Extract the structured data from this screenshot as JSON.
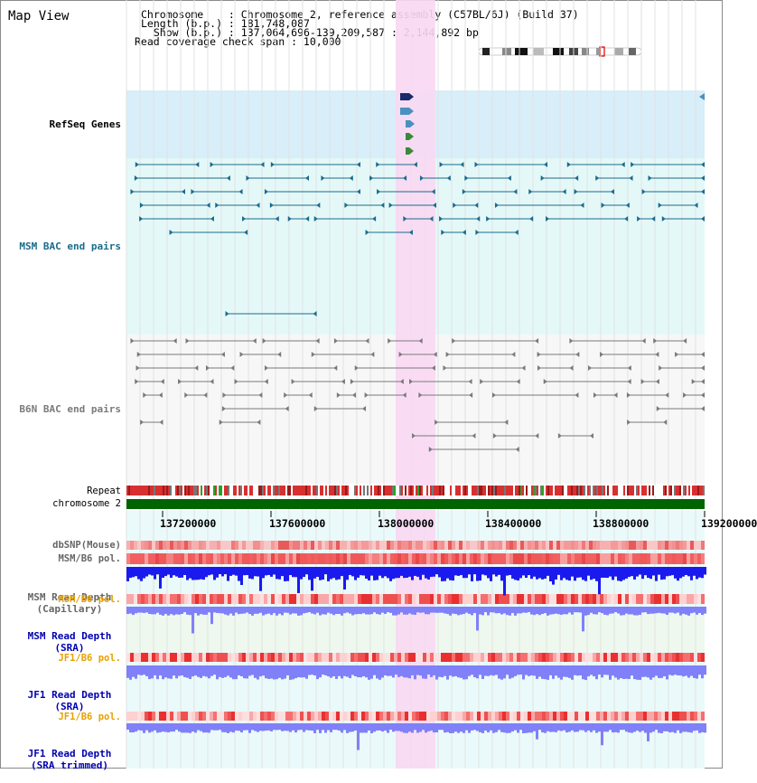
{
  "header": {
    "title": "Map View",
    "chromosome_line": "Chromosome    : Chromosome 2, reference assembly (C57BL/6J) (Build 37)",
    "length_line": "Length (b.p.) : 181,748,087",
    "show_line": "  Show (b.p.) : 137,064,696-139,209,587 : 2,144,892 bp",
    "coverage_line": "Read coverage check span : 10,000"
  },
  "tracks": {
    "refseq": {
      "label": "RefSeq Genes",
      "color": "#1a1aa0"
    },
    "msm_bac": {
      "label": "MSM BAC end pairs",
      "color": "#1a6b8c"
    },
    "b6n_bac": {
      "label": "B6N BAC end pairs",
      "color": "#7a7a7a"
    },
    "repeat": {
      "label": "Repeat"
    },
    "chromosome": {
      "label": "chromosome 2"
    },
    "dbsnp": {
      "label": "dbSNP(Mouse)"
    },
    "msm_b6_pol_1": {
      "label": "MSM/B6 pol."
    },
    "msm_depth_cap": {
      "label": "MSM Read Depth",
      "sub": "(Capillary)"
    },
    "msm_b6_pol_2": {
      "label": "MSM/B6 pol."
    },
    "msm_depth_sra": {
      "label": "MSM Read Depth",
      "sub": "(SRA)"
    },
    "jf1_b6_pol_1": {
      "label": "JF1/B6 pol."
    },
    "jf1_depth_sra": {
      "label": "JF1 Read Depth",
      "sub": "(SRA)"
    },
    "jf1_b6_pol_2": {
      "label": "JF1/B6 pol."
    },
    "jf1_depth_trim": {
      "label": "JF1 Read Depth",
      "sub": "(SRA trimmed)"
    }
  },
  "axis": {
    "ticks": [
      "137200000",
      "137600000",
      "138000000",
      "138400000",
      "138800000",
      "139200000"
    ]
  },
  "colors": {
    "highlight": "#f8d8f2",
    "refseq_bg": "#d8eef9",
    "msm_bg": "#e4f8f8",
    "chromosome": "#006400",
    "depth_blue": "#1a1aee",
    "depth_light": "#8080f8",
    "pol_red": "#e83030",
    "label_orange": "#e8a000",
    "label_blue": "#0000b0"
  }
}
